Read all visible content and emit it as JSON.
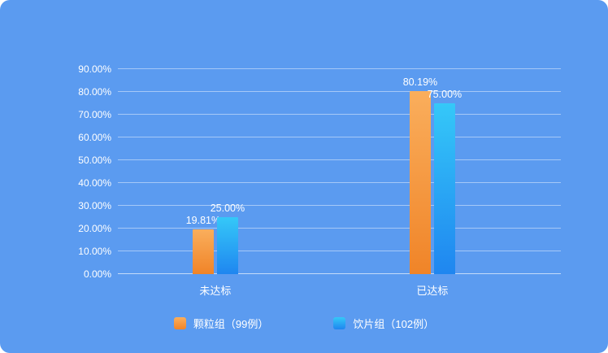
{
  "colors": {
    "background": "#5B9BF0",
    "grid_line": "rgba(255,255,255,0.45)",
    "text": "#ffffff"
  },
  "chart_data": {
    "type": "bar",
    "title": "",
    "xlabel": "",
    "ylabel": "",
    "categories": [
      "未达标",
      "已达标"
    ],
    "series": [
      {
        "name": "颗粒组（99例）",
        "values": [
          19.81,
          80.19
        ],
        "gradient": [
          "#FAAE5C",
          "#F08428"
        ]
      },
      {
        "name": "饮片组（102例）",
        "values": [
          25.0,
          75.0
        ],
        "gradient": [
          "#35C8F8",
          "#1F86F0"
        ]
      }
    ],
    "value_labels": [
      [
        "19.81%",
        "25.00%"
      ],
      [
        "80.19%",
        "75.00%"
      ]
    ],
    "ylim": [
      0,
      90
    ],
    "ytick_step": 10,
    "ytick_labels": [
      "0.00%",
      "10.00%",
      "20.00%",
      "30.00%",
      "40.00%",
      "50.00%",
      "60.00%",
      "70.00%",
      "80.00%",
      "90.00%"
    ],
    "grid": true,
    "legend_position": "bottom"
  }
}
